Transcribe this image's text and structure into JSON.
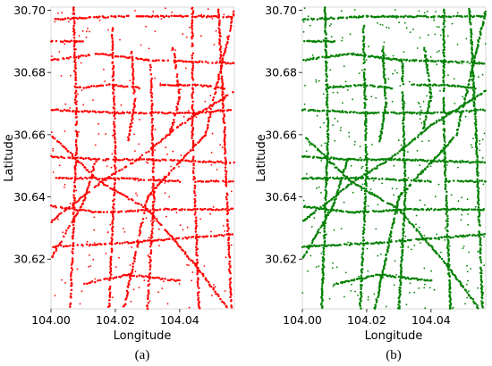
{
  "chart_data": [
    {
      "type": "scatter",
      "panel_label": "(a)",
      "xlabel": "Longitude",
      "ylabel": "Latitude",
      "xlim": [
        104.0,
        104.057
      ],
      "ylim": [
        30.604,
        30.701
      ],
      "xticks": [
        104.0,
        104.02,
        104.04
      ],
      "xtick_labels": [
        "104.00",
        "104.02",
        "104.04"
      ],
      "yticks": [
        30.62,
        30.64,
        30.66,
        30.68,
        30.7
      ],
      "ytick_labels": [
        "30.62",
        "30.64",
        "30.66",
        "30.68",
        "30.70"
      ],
      "color": "#ff0000",
      "point_density": 1.0,
      "scatter_density": 0.55,
      "road_segments": [
        [
          [
            104.0,
            30.697
          ],
          [
            104.02,
            30.698
          ],
          [
            104.057,
            30.698
          ]
        ],
        [
          [
            104.0,
            30.684
          ],
          [
            104.015,
            30.686
          ],
          [
            104.03,
            30.684
          ],
          [
            104.057,
            30.683
          ]
        ],
        [
          [
            104.0,
            30.668
          ],
          [
            104.02,
            30.667
          ],
          [
            104.045,
            30.667
          ],
          [
            104.057,
            30.668
          ]
        ],
        [
          [
            104.0,
            30.653
          ],
          [
            104.015,
            30.652
          ],
          [
            104.03,
            30.652
          ],
          [
            104.057,
            30.651
          ]
        ],
        [
          [
            104.0,
            30.646
          ],
          [
            104.02,
            30.646
          ],
          [
            104.04,
            30.645
          ]
        ],
        [
          [
            104.0,
            30.637
          ],
          [
            104.015,
            30.635
          ],
          [
            104.035,
            30.636
          ],
          [
            104.057,
            30.636
          ]
        ],
        [
          [
            104.0,
            30.624
          ],
          [
            104.02,
            30.625
          ],
          [
            104.057,
            30.628
          ]
        ],
        [
          [
            104.007,
            30.701
          ],
          [
            104.008,
            30.66
          ],
          [
            104.006,
            30.604
          ]
        ],
        [
          [
            104.019,
            30.695
          ],
          [
            104.02,
            30.65
          ],
          [
            104.018,
            30.604
          ]
        ],
        [
          [
            104.031,
            30.684
          ],
          [
            104.032,
            30.64
          ],
          [
            104.03,
            30.604
          ]
        ],
        [
          [
            104.044,
            30.701
          ],
          [
            104.044,
            30.66
          ],
          [
            104.046,
            30.604
          ]
        ],
        [
          [
            104.052,
            30.701
          ],
          [
            104.054,
            30.66
          ],
          [
            104.056,
            30.604
          ]
        ],
        [
          [
            104.022,
            30.601
          ],
          [
            104.03,
            30.64
          ],
          [
            104.048,
            30.66
          ],
          [
            104.057,
            30.7
          ]
        ],
        [
          [
            104.0,
            30.66
          ],
          [
            104.015,
            30.645
          ],
          [
            104.03,
            30.636
          ],
          [
            104.045,
            30.618
          ],
          [
            104.055,
            30.604
          ]
        ],
        [
          [
            104.0,
            30.632
          ],
          [
            104.016,
            30.645
          ],
          [
            104.027,
            30.652
          ],
          [
            104.04,
            30.663
          ],
          [
            104.057,
            30.674
          ]
        ],
        [
          [
            104.0,
            30.62
          ],
          [
            104.01,
            30.638
          ],
          [
            104.014,
            30.652
          ]
        ],
        [
          [
            104.008,
            30.675
          ],
          [
            104.018,
            30.676
          ],
          [
            104.028,
            30.675
          ]
        ],
        [
          [
            104.034,
            30.676
          ],
          [
            104.044,
            30.676
          ],
          [
            104.054,
            30.675
          ]
        ],
        [
          [
            104.01,
            30.612
          ],
          [
            104.024,
            30.615
          ],
          [
            104.04,
            30.613
          ]
        ],
        [
          [
            104.038,
            30.688
          ],
          [
            104.04,
            30.672
          ],
          [
            104.037,
            30.66
          ]
        ],
        [
          [
            104.025,
            30.688
          ],
          [
            104.026,
            30.67
          ],
          [
            104.024,
            30.658
          ]
        ],
        [
          [
            104.0,
            30.69
          ],
          [
            104.01,
            30.69
          ]
        ],
        [
          [
            104.045,
            30.645
          ],
          [
            104.057,
            30.645
          ]
        ]
      ]
    },
    {
      "type": "scatter",
      "panel_label": "(b)",
      "xlabel": "Longitude",
      "ylabel": "Latitude",
      "xlim": [
        104.0,
        104.057
      ],
      "ylim": [
        30.604,
        30.701
      ],
      "xticks": [
        104.0,
        104.02,
        104.04
      ],
      "xtick_labels": [
        "104.00",
        "104.02",
        "104.04"
      ],
      "yticks": [
        30.62,
        30.64,
        30.66,
        30.68,
        30.7
      ],
      "ytick_labels": [
        "30.62",
        "30.64",
        "30.66",
        "30.68",
        "30.70"
      ],
      "color": "#008000",
      "point_density": 1.3,
      "scatter_density": 0.8,
      "road_segments": "same road network as panel (a)"
    }
  ]
}
